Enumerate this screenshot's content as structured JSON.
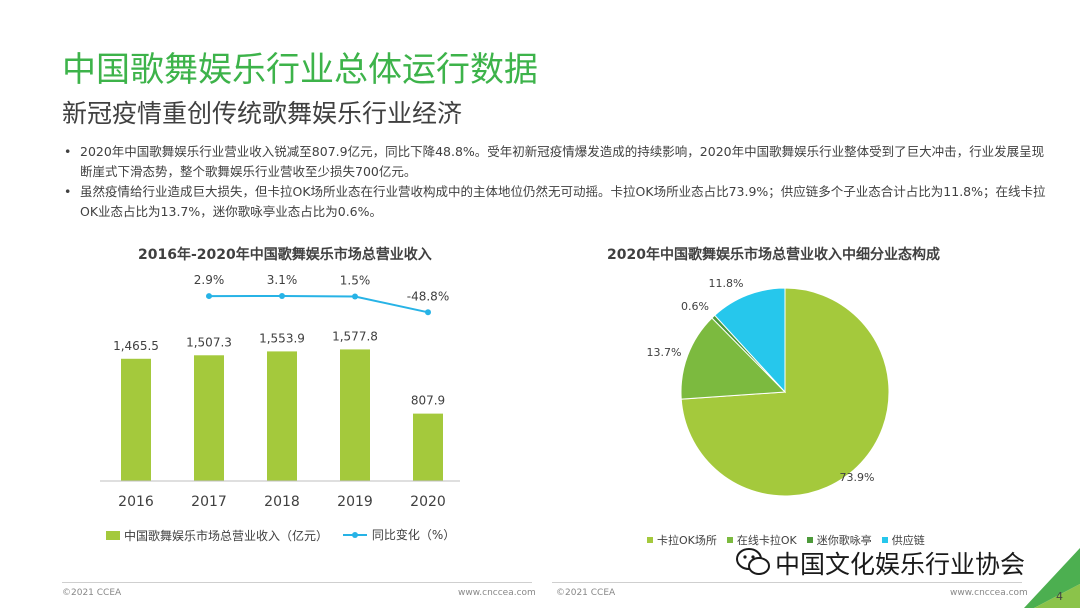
{
  "header": {
    "title": "中国歌舞娱乐行业总体运行数据",
    "subtitle": "新冠疫情重创传统歌舞娱乐行业经济"
  },
  "bullets": [
    "2020年中国歌舞娱乐行业营业收入锐减至807.9亿元，同比下降48.8%。受年初新冠疫情爆发造成的持续影响，2020年中国歌舞娱乐行业整体受到了巨大冲击，行业发展呈现断崖式下滑态势，整个歌舞娱乐行业营收至少损失700亿元。",
    "虽然疫情给行业造成巨大损失，但卡拉OK场所业态在行业营收构成中的主体地位仍然无可动摇。卡拉OK场所业态占比73.9%；供应链多个子业态合计占比为11.8%；在线卡拉OK业态占比为13.7%，迷你歌咏亭业态占比为0.6%。"
  ],
  "chart_data": [
    {
      "type": "bar",
      "title": "2016年-2020年中国歌舞娱乐市场总营业收入",
      "categories": [
        "2016",
        "2017",
        "2018",
        "2019",
        "2020"
      ],
      "series": [
        {
          "name": "中国歌舞娱乐市场总营业收入（亿元）",
          "type": "bar",
          "color": "#a4c93c",
          "values": [
            1465.5,
            1507.3,
            1553.9,
            1577.8,
            807.9
          ],
          "labels": [
            "1,465.5",
            "1,507.3",
            "1,553.9",
            "1,577.8",
            "807.9"
          ]
        },
        {
          "name": "同比变化（%）",
          "type": "line",
          "color": "#27b3e6",
          "x": [
            "2017",
            "2018",
            "2019",
            "2020"
          ],
          "values": [
            2.9,
            3.1,
            1.5,
            -48.8
          ],
          "labels": [
            "2.9%",
            "3.1%",
            "1.5%",
            "-48.8%"
          ]
        }
      ],
      "legend_position": "bottom",
      "grid": false
    },
    {
      "type": "pie",
      "title": "2020年中国歌舞娱乐市场总营业收入中细分业态构成",
      "slices": [
        {
          "label": "卡拉OK场所",
          "value": 73.9,
          "value_label": "73.9%",
          "color": "#a4c93c"
        },
        {
          "label": "在线卡拉OK",
          "value": 13.7,
          "value_label": "13.7%",
          "color": "#7cba3f"
        },
        {
          "label": "迷你歌咏亭",
          "value": 0.6,
          "value_label": "0.6%",
          "color": "#4d9a3a"
        },
        {
          "label": "供应链",
          "value": 11.8,
          "value_label": "11.8%",
          "color": "#26c7ec"
        }
      ],
      "legend_position": "bottom"
    }
  ],
  "footer": {
    "left_copyright": "©2021 CCEA",
    "left_url": "www.cnccea.com",
    "right_copyright": "©2021 CCEA",
    "right_url": "www.cnccea.com",
    "page_number": "4"
  },
  "watermark": {
    "text": "中国文化娱乐行业协会"
  },
  "colors": {
    "title_green": "#3db34a",
    "bar_green": "#a4c93c",
    "line_blue": "#27b3e6",
    "corner_green": "#4caf50"
  }
}
